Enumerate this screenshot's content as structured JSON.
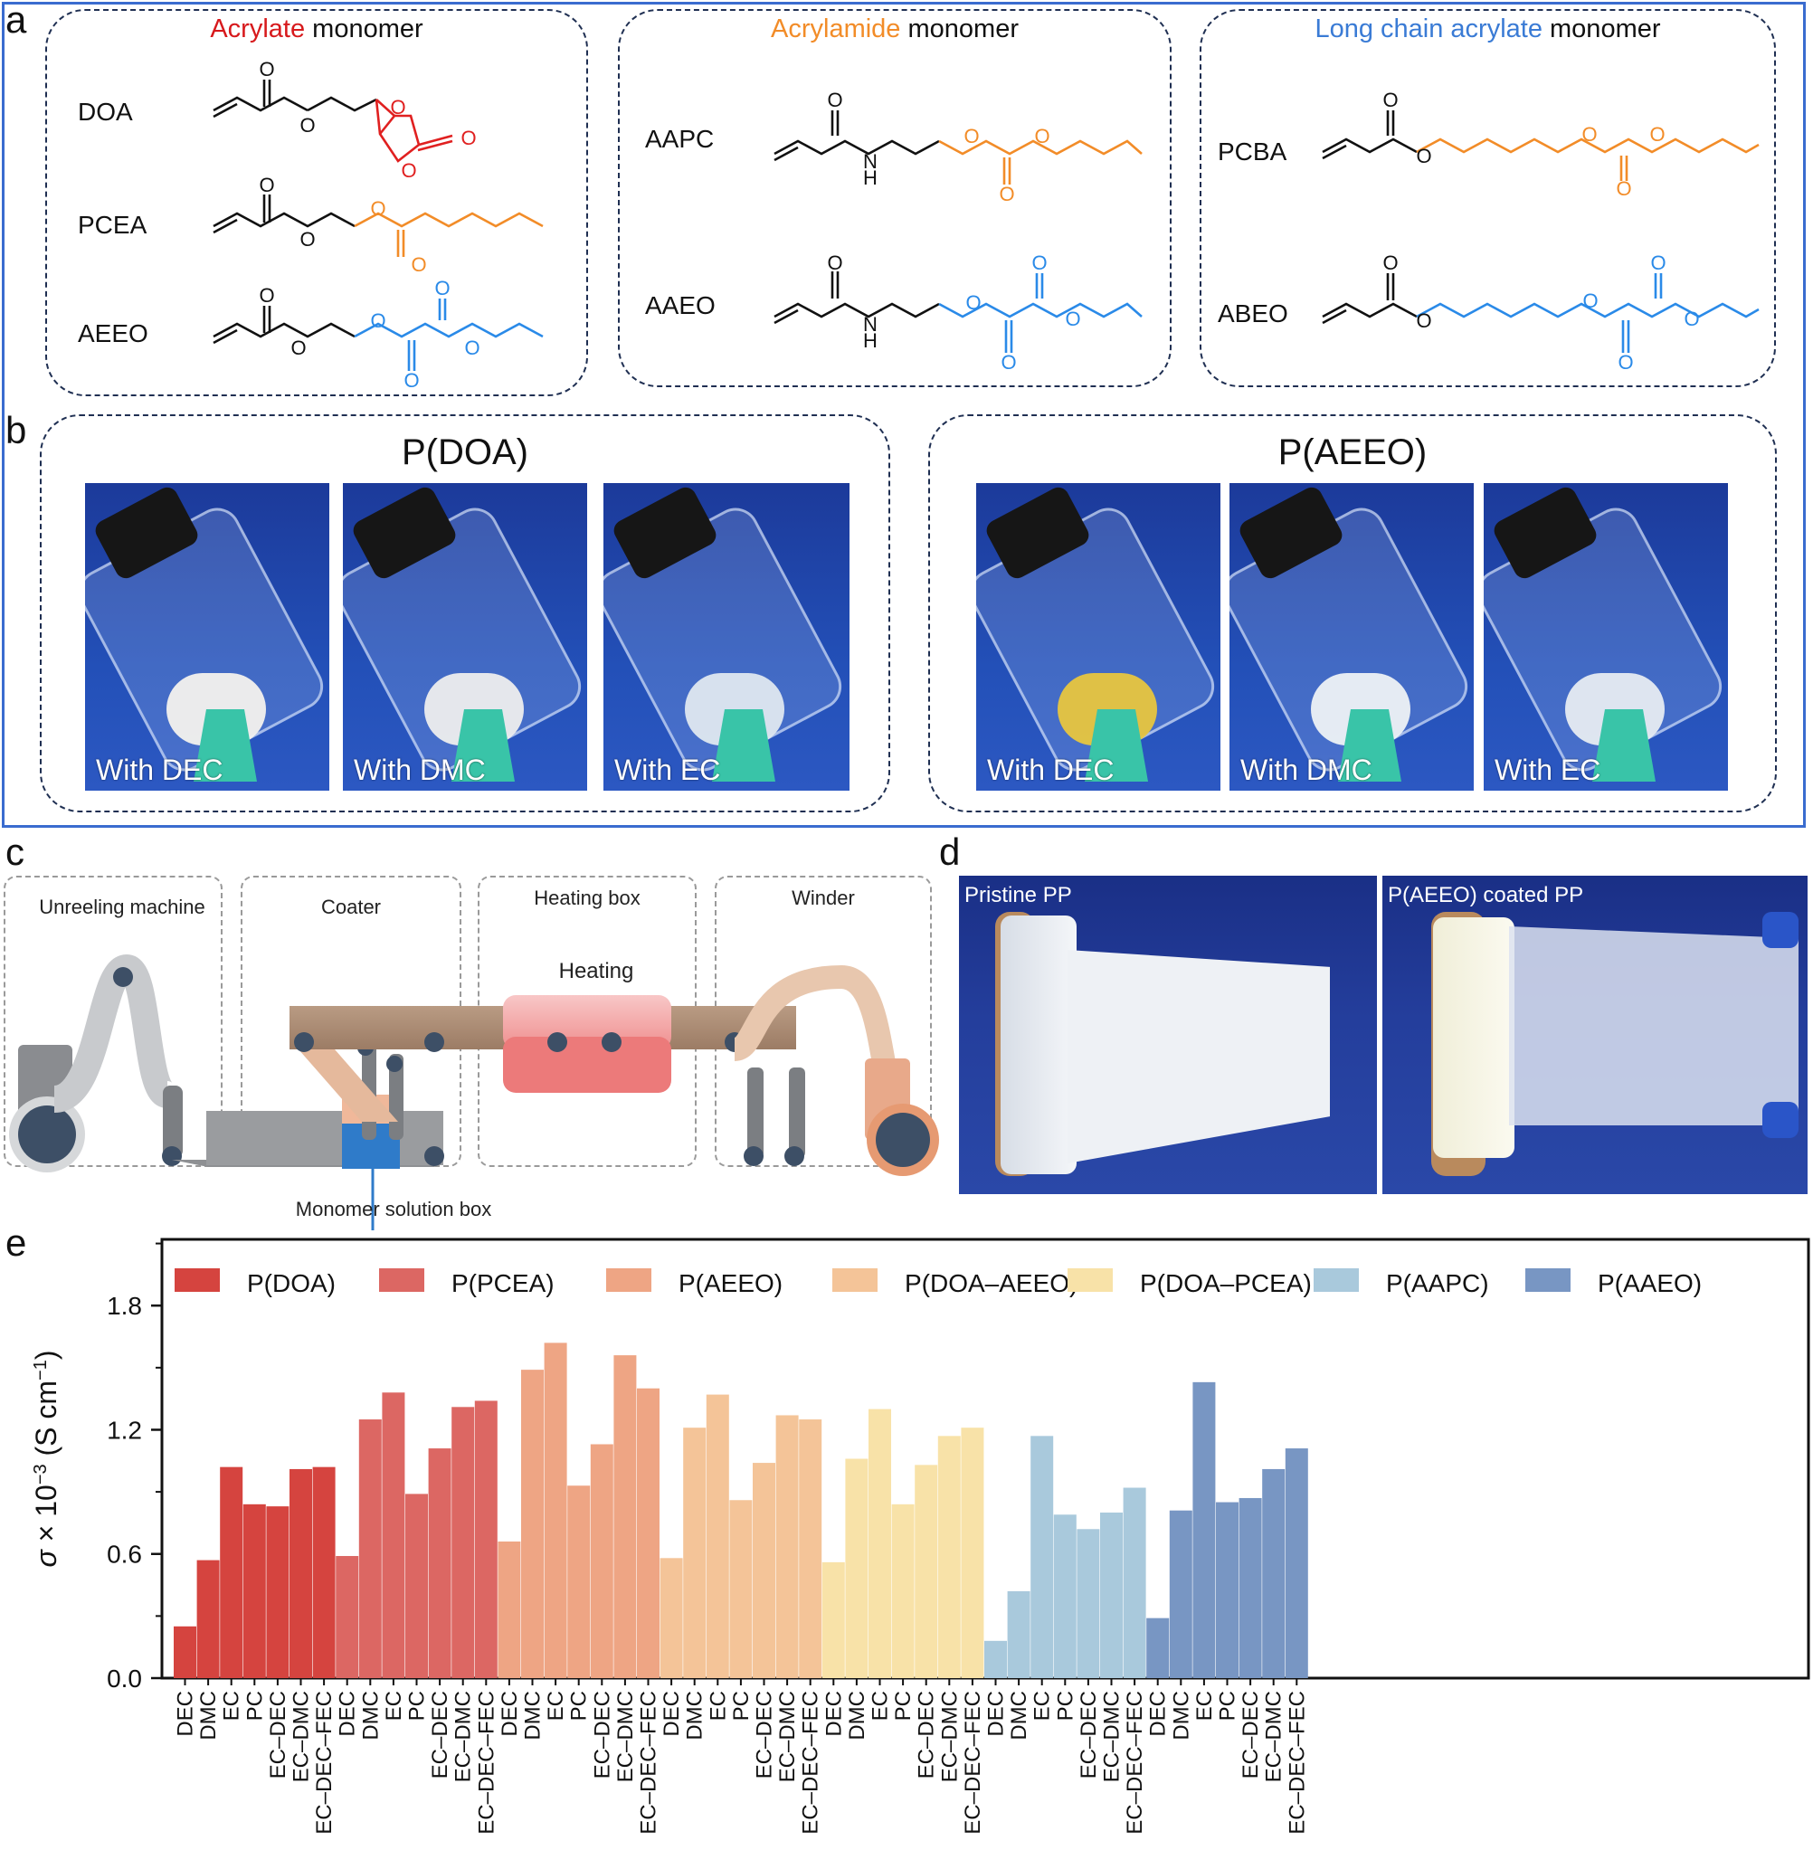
{
  "panel_labels": {
    "a": "a",
    "b": "b",
    "c": "c",
    "d": "d",
    "e": "e"
  },
  "panel_a": {
    "groups": [
      {
        "title_colored": "Acrylate",
        "title_rest": " monomer",
        "title_color": "#d7191c",
        "monomers": [
          {
            "abbr": "DOA",
            "atoms": [
              "O",
              "O",
              "O",
              "O",
              "O"
            ]
          },
          {
            "abbr": "PCEA",
            "atoms": [
              "O",
              "O",
              "O",
              "O"
            ]
          },
          {
            "abbr": "AEEO",
            "atoms": [
              "O",
              "O",
              "O",
              "O",
              "O",
              "O"
            ]
          }
        ]
      },
      {
        "title_colored": "Acrylamide",
        "title_rest": " monomer",
        "title_color": "#f28c28",
        "monomers": [
          {
            "abbr": "AAPC",
            "atoms": [
              "O",
              "N",
              "H",
              "O",
              "O",
              "O"
            ]
          },
          {
            "abbr": "AAEO",
            "atoms": [
              "O",
              "N",
              "H",
              "O",
              "O",
              "O",
              "O"
            ]
          }
        ]
      },
      {
        "title_colored": "Long chain acrylate",
        "title_rest": " monomer",
        "title_color": "#3a7bd5",
        "monomers": [
          {
            "abbr": "PCBA",
            "atoms": [
              "O",
              "O",
              "O",
              "O",
              "O"
            ]
          },
          {
            "abbr": "ABEO",
            "atoms": [
              "O",
              "O",
              "O",
              "O",
              "O",
              "O"
            ]
          }
        ]
      }
    ]
  },
  "panel_b": {
    "groups": [
      {
        "title": "P(DOA)",
        "photos": [
          "With DEC",
          "With DMC",
          "With EC"
        ]
      },
      {
        "title": "P(AEEO)",
        "photos": [
          "With DEC",
          "With DMC",
          "With EC"
        ]
      }
    ]
  },
  "panel_c": {
    "sections": [
      "Unreeling machine",
      "Coater",
      "Heating box",
      "Winder"
    ],
    "heating_label": "Heating",
    "monomer_box_label": "Monomer solution box"
  },
  "panel_d": {
    "captions": [
      "Pristine PP",
      "P(AEEO) coated PP"
    ]
  },
  "colors": {
    "frame": "#3a6ccf",
    "dash": "#1f2f52",
    "red": "#d7191c",
    "orange": "#f28c28",
    "blue": "#2a8ae8"
  },
  "chart_data": {
    "type": "bar",
    "ylabel_parts": [
      "σ × 10",
      "−3",
      "(S cm",
      "−1",
      ")"
    ],
    "ylim": [
      0,
      2.12
    ],
    "yticks": [
      0.0,
      0.6,
      1.2,
      1.8
    ],
    "ytick_labels": [
      "0.0",
      "0.6",
      "1.2",
      "1.8"
    ],
    "categories": [
      "DEC",
      "DMC",
      "EC",
      "PC",
      "EC–DEC",
      "EC–DMC",
      "EC–DEC–FEC"
    ],
    "series": [
      {
        "name": "P(DOA)",
        "color": "#d5443f",
        "values": [
          0.25,
          0.57,
          1.02,
          0.84,
          0.83,
          1.01,
          1.02
        ]
      },
      {
        "name": "P(PCEA)",
        "color": "#dc6763",
        "values": [
          0.59,
          1.25,
          1.38,
          0.89,
          1.11,
          1.31,
          1.34
        ]
      },
      {
        "name": "P(AEEO)",
        "color": "#eea584",
        "values": [
          0.66,
          1.49,
          1.62,
          0.93,
          1.13,
          1.56,
          1.4
        ]
      },
      {
        "name": "P(DOA–AEEO)",
        "color": "#f4c498",
        "values": [
          0.58,
          1.21,
          1.37,
          0.86,
          1.04,
          1.27,
          1.25
        ]
      },
      {
        "name": "P(DOA–PCEA)",
        "color": "#f8e2a8",
        "values": [
          0.56,
          1.06,
          1.3,
          0.84,
          1.03,
          1.17,
          1.21
        ]
      },
      {
        "name": "P(AAPC)",
        "color": "#a9c9dc",
        "values": [
          0.18,
          0.42,
          1.17,
          0.79,
          0.72,
          0.8,
          0.92
        ]
      },
      {
        "name": "P(AAEO)",
        "color": "#7896c3",
        "values": [
          0.29,
          0.81,
          1.43,
          0.85,
          0.87,
          1.01,
          1.11
        ]
      }
    ]
  }
}
